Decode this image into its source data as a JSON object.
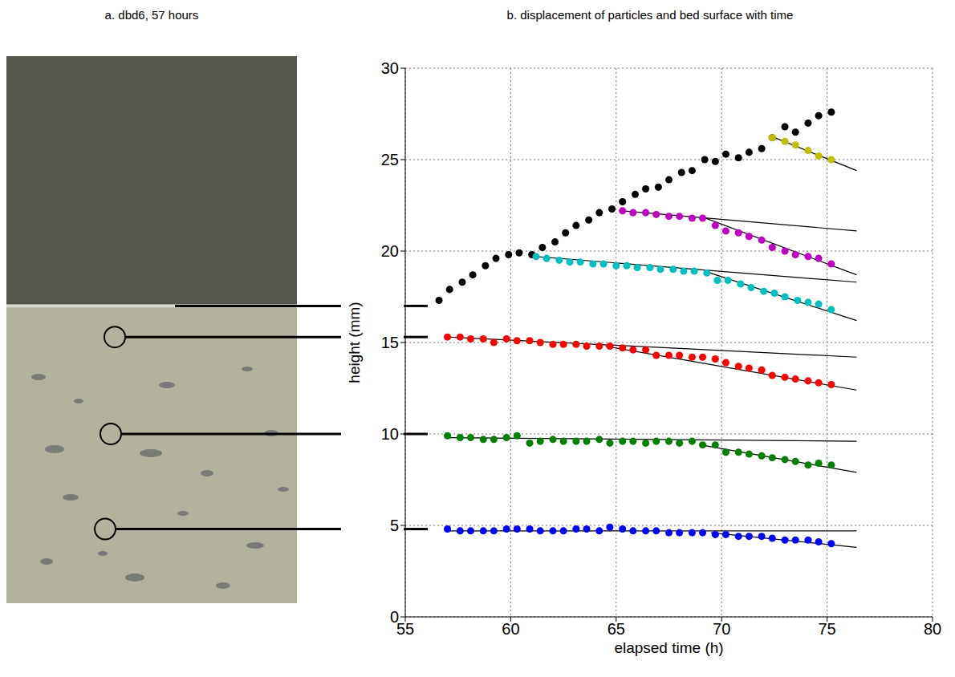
{
  "photo_panel": {
    "title": "a. dbd6, 57 hours"
  },
  "chart_data": {
    "type": "scatter",
    "title": "b. displacement of particles and bed surface with time",
    "x_label": "elapsed time (h)",
    "y_label": "height (mm)",
    "xlim": [
      55,
      80
    ],
    "ylim": [
      0,
      30
    ],
    "xticks": [
      55,
      60,
      65,
      70,
      75,
      80
    ],
    "yticks": [
      0,
      5,
      10,
      15,
      20,
      25,
      30
    ],
    "grid": true,
    "initial_heights": [
      17.0,
      15.3,
      10.0,
      4.8
    ],
    "series": [
      {
        "type": "line",
        "color": "#000000",
        "line_style": "solid",
        "x": [
          72.3,
          76.4
        ],
        "values": [
          26.3,
          24.4
        ]
      },
      {
        "type": "line",
        "color": "#000000",
        "line_style": "solid",
        "x": [
          65.3,
          76.4
        ],
        "values": [
          22.2,
          21.1
        ]
      },
      {
        "type": "line",
        "color": "#000000",
        "line_style": "solid",
        "x": [
          69.0,
          76.4
        ],
        "values": [
          21.9,
          18.7
        ]
      },
      {
        "type": "line",
        "color": "#000000",
        "line_style": "solid",
        "x": [
          61.2,
          76.4
        ],
        "values": [
          19.7,
          18.3
        ]
      },
      {
        "type": "line",
        "color": "#000000",
        "line_style": "solid",
        "x": [
          69.2,
          76.4
        ],
        "values": [
          18.9,
          16.2
        ]
      },
      {
        "type": "line",
        "color": "#000000",
        "line_style": "solid",
        "x": [
          57.0,
          76.4
        ],
        "values": [
          15.3,
          14.2
        ]
      },
      {
        "type": "line",
        "color": "#000000",
        "line_style": "solid",
        "x": [
          64.5,
          76.4
        ],
        "values": [
          14.8,
          12.4
        ]
      },
      {
        "type": "line",
        "color": "#000000",
        "line_style": "solid",
        "x": [
          57.0,
          76.4
        ],
        "values": [
          9.8,
          9.6
        ]
      },
      {
        "type": "line",
        "color": "#000000",
        "line_style": "solid",
        "x": [
          69.0,
          76.4
        ],
        "values": [
          9.4,
          7.9
        ]
      },
      {
        "type": "line",
        "color": "#000000",
        "line_style": "solid",
        "x": [
          57.0,
          76.4
        ],
        "values": [
          4.7,
          4.7
        ]
      },
      {
        "type": "line",
        "color": "#000000",
        "line_style": "solid",
        "x": [
          69.5,
          76.4
        ],
        "values": [
          4.6,
          3.8
        ]
      },
      {
        "type": "scatter",
        "color": "#000000",
        "marker": "circle",
        "x": [
          56.6,
          57.1,
          57.7,
          58.2,
          58.8,
          59.3,
          59.9,
          60.4,
          61.0,
          61.5,
          62.1,
          62.6,
          63.1,
          63.7,
          64.2,
          64.8,
          65.3,
          65.9,
          66.4,
          67.0,
          67.5,
          68.1,
          68.6,
          69.2,
          69.7,
          70.2,
          70.8,
          71.3,
          71.9,
          72.4,
          73.0,
          73.5,
          74.1,
          74.6,
          75.2
        ],
        "values": [
          17.3,
          17.9,
          18.3,
          18.7,
          19.2,
          19.6,
          19.8,
          19.9,
          19.8,
          20.2,
          20.5,
          21.0,
          21.4,
          21.7,
          22.1,
          22.3,
          22.7,
          23.1,
          23.4,
          23.5,
          23.9,
          24.3,
          24.4,
          25.0,
          24.9,
          25.3,
          25.1,
          25.4,
          25.6,
          26.2,
          26.8,
          26.5,
          27.0,
          27.4,
          27.6
        ]
      },
      {
        "type": "scatter",
        "color": "#bfbf00",
        "marker": "circle",
        "x": [
          72.4,
          73.0,
          73.5,
          74.1,
          74.6,
          75.2
        ],
        "values": [
          26.2,
          26.0,
          25.8,
          25.5,
          25.2,
          25.0
        ]
      },
      {
        "type": "scatter",
        "color": "#bf00bf",
        "marker": "circle",
        "x": [
          65.3,
          65.8,
          66.4,
          66.9,
          67.5,
          68.0,
          68.6,
          69.1,
          69.7,
          70.2,
          70.8,
          71.3,
          71.9,
          72.4,
          73.0,
          73.5,
          74.1,
          74.6,
          75.2
        ],
        "values": [
          22.2,
          22.1,
          22.1,
          22.0,
          21.9,
          21.9,
          21.8,
          21.8,
          21.4,
          21.1,
          21.0,
          20.8,
          20.6,
          20.2,
          20.0,
          19.8,
          19.7,
          19.6,
          19.3
        ]
      },
      {
        "type": "scatter",
        "color": "#00bfbf",
        "marker": "circle",
        "x": [
          61.2,
          61.7,
          62.3,
          62.8,
          63.3,
          63.9,
          64.4,
          65.0,
          65.5,
          66.0,
          66.6,
          67.1,
          67.7,
          68.2,
          68.7,
          69.3,
          69.8,
          70.3,
          70.9,
          71.4,
          72.0,
          72.5,
          73.0,
          73.6,
          74.1,
          74.6,
          75.2
        ],
        "values": [
          19.7,
          19.6,
          19.5,
          19.4,
          19.4,
          19.3,
          19.3,
          19.2,
          19.2,
          19.1,
          19.1,
          19.0,
          19.0,
          18.9,
          18.9,
          18.8,
          18.4,
          18.4,
          18.2,
          18.0,
          17.8,
          17.7,
          17.5,
          17.3,
          17.2,
          17.1,
          16.8
        ]
      },
      {
        "type": "scatter",
        "color": "#ff0000",
        "marker": "circle",
        "x": [
          57.0,
          57.6,
          58.1,
          58.7,
          59.2,
          59.8,
          60.3,
          60.9,
          61.4,
          62.0,
          62.5,
          63.1,
          63.6,
          64.2,
          64.7,
          65.3,
          65.8,
          66.4,
          66.9,
          67.5,
          68.0,
          68.6,
          69.1,
          69.7,
          70.2,
          70.8,
          71.3,
          71.9,
          72.4,
          73.0,
          73.5,
          74.1,
          74.6,
          75.2
        ],
        "values": [
          15.3,
          15.3,
          15.2,
          15.2,
          15.0,
          15.2,
          15.1,
          15.1,
          15.0,
          14.9,
          14.9,
          14.9,
          14.8,
          14.8,
          14.8,
          14.7,
          14.6,
          14.6,
          14.3,
          14.3,
          14.3,
          14.2,
          14.2,
          14.1,
          13.9,
          13.7,
          13.6,
          13.5,
          13.2,
          13.1,
          13.0,
          12.9,
          12.8,
          12.7
        ]
      },
      {
        "type": "scatter",
        "color": "#008000",
        "marker": "circle",
        "x": [
          57.0,
          57.6,
          58.1,
          58.7,
          59.2,
          59.8,
          60.3,
          60.9,
          61.4,
          62.0,
          62.5,
          63.1,
          63.6,
          64.2,
          64.7,
          65.3,
          65.8,
          66.4,
          66.9,
          67.5,
          68.0,
          68.6,
          69.1,
          69.7,
          70.2,
          70.8,
          71.3,
          71.9,
          72.4,
          73.0,
          73.5,
          74.1,
          74.6,
          75.2
        ],
        "values": [
          9.9,
          9.8,
          9.8,
          9.7,
          9.7,
          9.8,
          9.9,
          9.5,
          9.6,
          9.7,
          9.6,
          9.6,
          9.6,
          9.7,
          9.5,
          9.6,
          9.6,
          9.5,
          9.6,
          9.6,
          9.5,
          9.6,
          9.4,
          9.4,
          9.0,
          9.0,
          8.9,
          8.8,
          8.7,
          8.6,
          8.5,
          8.3,
          8.4,
          8.3
        ]
      },
      {
        "type": "scatter",
        "color": "#0000ff",
        "marker": "circle",
        "x": [
          57.0,
          57.6,
          58.1,
          58.7,
          59.2,
          59.8,
          60.3,
          60.9,
          61.4,
          62.0,
          62.5,
          63.1,
          63.6,
          64.2,
          64.7,
          65.3,
          65.8,
          66.4,
          66.9,
          67.5,
          68.0,
          68.6,
          69.1,
          69.7,
          70.2,
          70.8,
          71.3,
          71.9,
          72.4,
          73.0,
          73.5,
          74.1,
          74.6,
          75.2
        ],
        "values": [
          4.8,
          4.7,
          4.7,
          4.7,
          4.7,
          4.8,
          4.8,
          4.8,
          4.7,
          4.7,
          4.7,
          4.8,
          4.8,
          4.7,
          4.9,
          4.8,
          4.7,
          4.7,
          4.7,
          4.6,
          4.6,
          4.6,
          4.6,
          4.5,
          4.5,
          4.4,
          4.4,
          4.4,
          4.3,
          4.2,
          4.2,
          4.2,
          4.1,
          4.0
        ]
      }
    ]
  }
}
